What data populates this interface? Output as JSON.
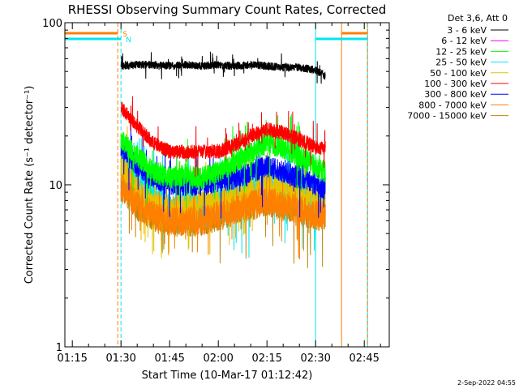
{
  "chart_data": {
    "type": "line",
    "title": "RHESSI Observing Summary Count Rates, Corrected",
    "xlabel": "Start Time (10-Mar-17 01:12:42)",
    "ylabel": "Corrected Count Rate (s⁻¹ detector⁻¹)",
    "ylim": [
      1,
      100
    ],
    "yscale": "log",
    "xlim": [
      "01:12:42",
      "02:52:42"
    ],
    "x_ticks": [
      "01:15",
      "01:30",
      "01:45",
      "02:00",
      "02:15",
      "02:30",
      "02:45"
    ],
    "y_ticks": [
      "1",
      "10",
      "100"
    ],
    "legend_header": "Det 3,6, Att 0",
    "legend_position": "outside-right",
    "flags": [
      {
        "label": "S",
        "color": "#ff7f00",
        "intervals": [
          [
            "01:12:42",
            "01:29:00"
          ],
          [
            "02:38:00",
            "02:46:00"
          ]
        ]
      },
      {
        "label": "N",
        "color": "#00e5ee",
        "intervals": [
          [
            "01:12:42",
            "01:30:00"
          ],
          [
            "02:30:00",
            "02:46:00"
          ]
        ]
      }
    ],
    "vertical_lines": [
      {
        "t": "01:12:42",
        "color": "#00e5ee",
        "style": "solid"
      },
      {
        "t": "01:29:00",
        "color": "#ff7f00",
        "style": "dashed"
      },
      {
        "t": "01:30:00",
        "color": "#00e5ee",
        "style": "dashed"
      },
      {
        "t": "02:30:00",
        "color": "#00e5ee",
        "style": "solid"
      },
      {
        "t": "02:38:00",
        "color": "#ff7f00",
        "style": "solid"
      },
      {
        "t": "02:46:00",
        "color": "#00e5ee",
        "style": "solid"
      },
      {
        "t": "02:46:00",
        "color": "#ff7f00",
        "style": "dashed"
      }
    ],
    "series": [
      {
        "name": "3 - 6 keV",
        "color": "#000000",
        "x": [
          "01:30",
          "01:35",
          "01:40",
          "01:45",
          "01:50",
          "01:55",
          "02:00",
          "02:05",
          "02:10",
          "02:15",
          "02:20",
          "02:25",
          "02:30",
          "02:33"
        ],
        "y": [
          54,
          55,
          55,
          54,
          55,
          54,
          55,
          54,
          55,
          54,
          53,
          53,
          51,
          47
        ]
      },
      {
        "name": "6 - 12 keV",
        "color": "#ff00ff",
        "x": [],
        "y": []
      },
      {
        "name": "12 - 25 keV",
        "color": "#00ff00",
        "x": [
          "01:30",
          "01:35",
          "01:40",
          "01:45",
          "01:50",
          "01:55",
          "02:00",
          "02:05",
          "02:10",
          "02:15",
          "02:20",
          "02:25",
          "02:30",
          "02:33"
        ],
        "y": [
          19,
          15,
          12,
          11,
          11.5,
          11,
          12,
          13.5,
          16,
          18,
          17,
          15,
          13,
          12
        ]
      },
      {
        "name": "25 - 50 keV",
        "color": "#00e5ee",
        "x": [
          "01:30",
          "01:35",
          "01:40",
          "01:45",
          "01:50",
          "01:55",
          "02:00",
          "02:05",
          "02:10",
          "02:15",
          "02:20",
          "02:25",
          "02:30",
          "02:33"
        ],
        "y": [
          15,
          10,
          8,
          7,
          7,
          7,
          7.5,
          8,
          9,
          10,
          9.5,
          9,
          8.5,
          8
        ]
      },
      {
        "name": "50 - 100 keV",
        "color": "#e6c200",
        "x": [
          "01:30",
          "01:35",
          "01:40",
          "01:45",
          "01:50",
          "01:55",
          "02:00",
          "02:05",
          "02:10",
          "02:15",
          "02:20",
          "02:25",
          "02:30",
          "02:33"
        ],
        "y": [
          13,
          9,
          7.5,
          7,
          7,
          7.5,
          7.5,
          8,
          9,
          9.5,
          9,
          8.5,
          8,
          7.5
        ]
      },
      {
        "name": "100 - 300 keV",
        "color": "#ff0000",
        "x": [
          "01:30",
          "01:35",
          "01:40",
          "01:45",
          "01:50",
          "01:55",
          "02:00",
          "02:05",
          "02:10",
          "02:15",
          "02:20",
          "02:25",
          "02:30",
          "02:33"
        ],
        "y": [
          30,
          23,
          18,
          16,
          16,
          16,
          16,
          17.5,
          20,
          22,
          21,
          19,
          17,
          17
        ]
      },
      {
        "name": "300 - 800 keV",
        "color": "#0000ff",
        "x": [
          "01:30",
          "01:35",
          "01:40",
          "01:45",
          "01:50",
          "01:55",
          "02:00",
          "02:05",
          "02:10",
          "02:15",
          "02:20",
          "02:25",
          "02:30",
          "02:33"
        ],
        "y": [
          17,
          13,
          11,
          10,
          10,
          10,
          10.5,
          11,
          12,
          13,
          12,
          11,
          10,
          9.5
        ]
      },
      {
        "name": "800 - 7000 keV",
        "color": "#ff7f00",
        "x": [
          "01:30",
          "01:35",
          "01:40",
          "01:45",
          "01:50",
          "01:55",
          "02:00",
          "02:05",
          "02:10",
          "02:15",
          "02:20",
          "02:25",
          "02:30",
          "02:33"
        ],
        "y": [
          10,
          7.5,
          6.5,
          6,
          6,
          6,
          6.5,
          7,
          7.5,
          8,
          7.5,
          7,
          6.5,
          6.5
        ]
      },
      {
        "name": "7000 - 15000 keV",
        "color": "#b8860b",
        "x": [
          "01:30",
          "01:35",
          "01:40",
          "01:45",
          "01:50",
          "01:55",
          "02:00",
          "02:05",
          "02:10",
          "02:15",
          "02:20",
          "02:25",
          "02:30",
          "02:33"
        ],
        "y": [
          10,
          7.5,
          6.5,
          6,
          6,
          6,
          6.5,
          7,
          7.5,
          8,
          7.5,
          7,
          6.5,
          6.5
        ]
      }
    ]
  },
  "footer": {
    "timestamp": "2-Sep-2022 04:55"
  }
}
